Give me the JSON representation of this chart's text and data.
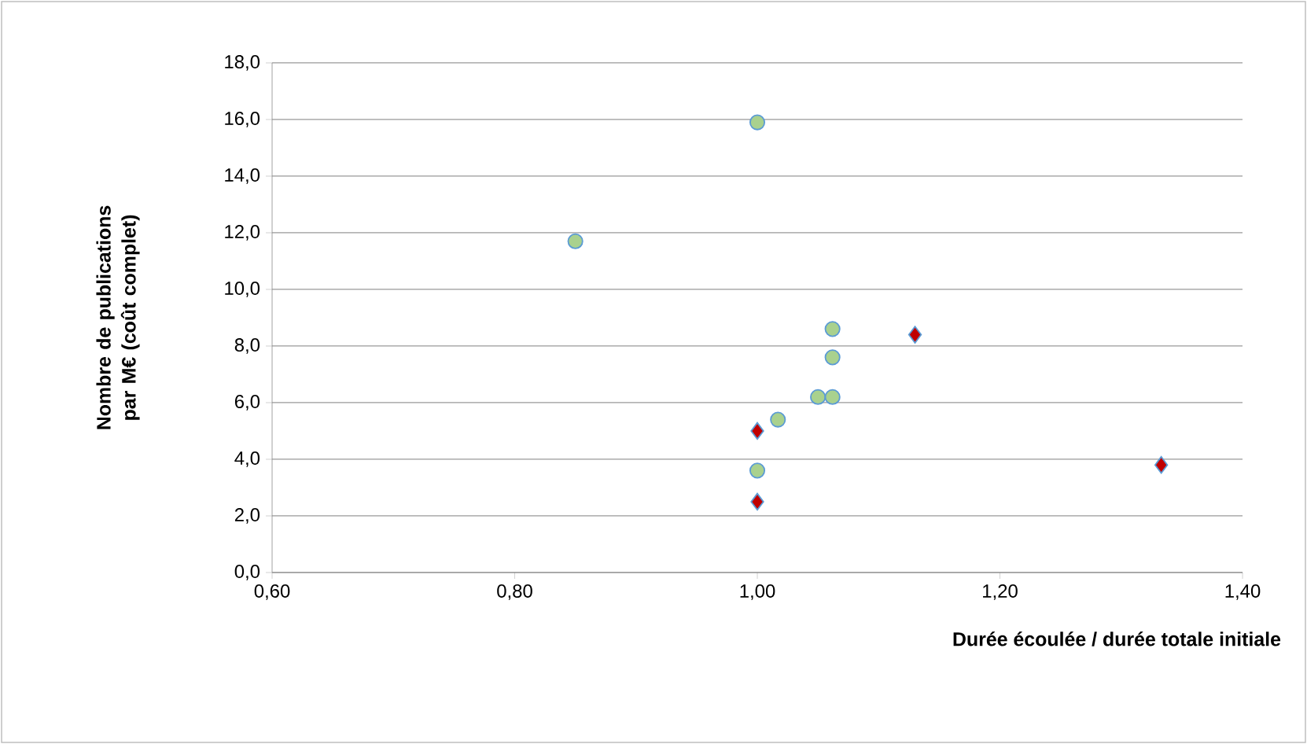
{
  "chart_data": {
    "type": "scatter",
    "xlabel": "Durée écoulée / durée totale initiale",
    "ylabel": "Nombre de publications par M€ (coût complet)",
    "xlim": [
      0.6,
      1.4
    ],
    "xticks": [
      {
        "value": 0.6,
        "label": "0,60"
      },
      {
        "value": 0.8,
        "label": "0,80"
      },
      {
        "value": 1.0,
        "label": "1,00"
      },
      {
        "value": 1.2,
        "label": "1,20"
      },
      {
        "value": 1.4,
        "label": "1,40"
      }
    ],
    "ylim": [
      0,
      18
    ],
    "yticks": [
      {
        "value": 0,
        "label": "0,0"
      },
      {
        "value": 2,
        "label": "2,0"
      },
      {
        "value": 4,
        "label": "4,0"
      },
      {
        "value": 6,
        "label": "6,0"
      },
      {
        "value": 8,
        "label": "8,0"
      },
      {
        "value": 10,
        "label": "10,0"
      },
      {
        "value": 12,
        "label": "12,0"
      },
      {
        "value": 14,
        "label": "14,0"
      },
      {
        "value": 16,
        "label": "16,0"
      },
      {
        "value": 18,
        "label": "18,0"
      }
    ],
    "grid": "y",
    "series": [
      {
        "color": "#a9d18e",
        "marker": "circle",
        "x": [
          0.85,
          1.0,
          1.062,
          1.062,
          1.05,
          1.062,
          1.017,
          1.0
        ],
        "values": [
          11.7,
          15.9,
          8.6,
          7.6,
          6.2,
          6.2,
          5.4,
          3.6
        ]
      },
      {
        "color": "#c00000",
        "marker": "diamond",
        "x": [
          1.13,
          1.0,
          1.0,
          1.333
        ],
        "values": [
          8.4,
          5.0,
          2.5,
          3.8
        ]
      }
    ]
  }
}
